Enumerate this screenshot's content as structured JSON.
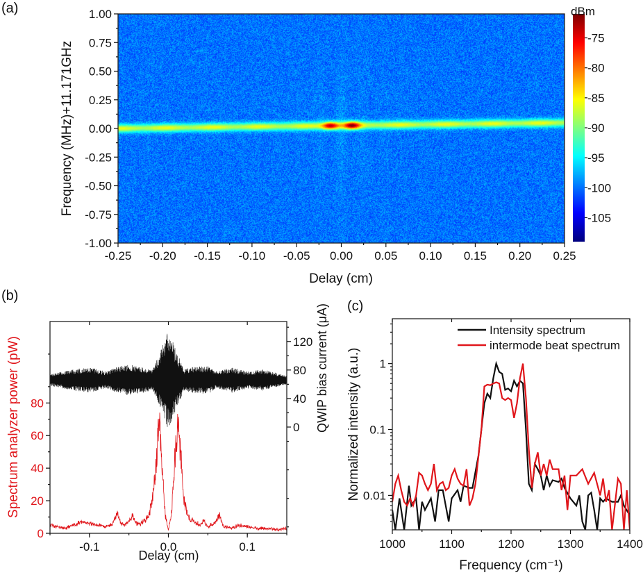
{
  "chart_data": [
    {
      "panel_label": "(a)",
      "type": "heatmap",
      "xlabel": "Delay (cm)",
      "ylabel": "Frequency (MHz)+11.171GHz",
      "xlim": [
        -0.25,
        0.25
      ],
      "ylim": [
        -1.0,
        1.0
      ],
      "xticks": [
        "-0.25",
        "-0.20",
        "-0.15",
        "-0.10",
        "-0.05",
        "0.00",
        "0.05",
        "0.10",
        "0.15",
        "0.20",
        "0.25"
      ],
      "yticks": [
        "1.00",
        "0.75",
        "0.50",
        "0.25",
        "0.00",
        "-0.25",
        "-0.50",
        "-0.75",
        "-1.00"
      ],
      "colorbar": {
        "label": "dBm",
        "colormap": "jet",
        "range": [
          -109,
          -71
        ],
        "ticks": [
          "-75",
          "-80",
          "-85",
          "-90",
          "-95",
          "-100",
          "-105"
        ]
      },
      "background_level_dBm": -100,
      "beat_line": {
        "frequency_at_left_MHz": 0.0,
        "frequency_at_right_MHz": 0.05,
        "level_dBm": -87
      },
      "peaks": [
        {
          "delay": -0.012,
          "level_dBm": -72
        },
        {
          "delay": 0.012,
          "level_dBm": -72
        }
      ],
      "grid": false
    },
    {
      "panel_label": "(b)",
      "type": "line",
      "xlabel": "Delay (cm)",
      "xlim": [
        -0.15,
        0.15
      ],
      "xticks": [
        "-0.1",
        "0.0",
        "0.1"
      ],
      "y_left": {
        "label": "Spectrum analyzer power (pW)",
        "color": "#e0161b",
        "ylim": [
          0,
          130
        ],
        "ticks": [
          "0",
          "20",
          "40",
          "60",
          "80"
        ]
      },
      "y_right": {
        "label": "QWIP bias current (μA)",
        "color": "#111111",
        "ylim": [
          -149,
          148
        ],
        "ticks": [
          "0",
          "40",
          "80",
          "120"
        ]
      },
      "series": [
        {
          "axis": "left",
          "color": "#e0161b",
          "x": [
            -0.15,
            -0.14,
            -0.13,
            -0.12,
            -0.11,
            -0.1,
            -0.09,
            -0.08,
            -0.07,
            -0.065,
            -0.06,
            -0.055,
            -0.045,
            -0.04,
            -0.035,
            -0.03,
            -0.025,
            -0.02,
            -0.015,
            -0.012,
            -0.008,
            -0.004,
            0,
            0.004,
            0.008,
            0.012,
            0.016,
            0.02,
            0.025,
            0.03,
            0.04,
            0.045,
            0.05,
            0.06,
            0.065,
            0.07,
            0.08,
            0.09,
            0.1,
            0.11,
            0.12,
            0.13,
            0.14,
            0.15
          ],
          "y": [
            5,
            4,
            3,
            5,
            7,
            6,
            5,
            4,
            6,
            12,
            6,
            5,
            11,
            6,
            6,
            8,
            10,
            22,
            45,
            72,
            40,
            12,
            2,
            12,
            45,
            66,
            45,
            20,
            10,
            8,
            5,
            8,
            4,
            7,
            11,
            4,
            3,
            5,
            4,
            3,
            3,
            3,
            2,
            3
          ]
        },
        {
          "axis": "right",
          "color": "#111111",
          "kind": "interferogram",
          "center": 66,
          "x": [
            -0.15,
            -0.12,
            -0.1,
            -0.08,
            -0.06,
            -0.05,
            -0.04,
            -0.02,
            -0.01,
            0,
            0.01,
            0.02,
            0.03,
            0.05,
            0.06,
            0.08,
            0.1,
            0.12,
            0.15
          ],
          "half_amplitude": [
            8,
            15,
            18,
            12,
            20,
            22,
            20,
            15,
            40,
            72,
            40,
            15,
            18,
            20,
            12,
            18,
            12,
            15,
            6
          ]
        }
      ],
      "grid": false
    },
    {
      "panel_label": "(c)",
      "type": "line",
      "xlabel": "Frequency (cm⁻¹)",
      "ylabel": "Normalized intensity (a.u.)",
      "xlim": [
        1000,
        1400
      ],
      "ylim": [
        0.003,
        4.8
      ],
      "yscale": "log",
      "xticks": [
        "1000",
        "1100",
        "1200",
        "1300",
        "1400"
      ],
      "yticks": [
        "1",
        "0.1",
        "0.01"
      ],
      "legend": "top-right",
      "series": [
        {
          "name": "Intensity spectrum",
          "color": "#111111",
          "x": [
            1000,
            1005,
            1012,
            1020,
            1028,
            1032,
            1040,
            1045,
            1050,
            1055,
            1065,
            1072,
            1078,
            1085,
            1095,
            1100,
            1110,
            1115,
            1120,
            1130,
            1135,
            1145,
            1155,
            1160,
            1165,
            1170,
            1175,
            1180,
            1185,
            1190,
            1195,
            1200,
            1205,
            1210,
            1215,
            1220,
            1225,
            1230,
            1235,
            1240,
            1245,
            1250,
            1255,
            1260,
            1265,
            1270,
            1280,
            1285,
            1290,
            1300,
            1310,
            1315,
            1320,
            1325,
            1330,
            1335,
            1340,
            1345,
            1350,
            1355,
            1360,
            1370,
            1380,
            1385,
            1390,
            1400
          ],
          "y": [
            0.006,
            0.003,
            0.009,
            0.003,
            0.014,
            0.007,
            0.009,
            0.003,
            0.008,
            0.006,
            0.009,
            0.004,
            0.012,
            0.012,
            0.004,
            0.009,
            0.012,
            0.008,
            0.014,
            0.013,
            0.013,
            0.04,
            0.25,
            0.35,
            0.3,
            0.6,
            1.0,
            0.75,
            0.7,
            0.4,
            0.42,
            0.38,
            0.55,
            0.45,
            0.55,
            0.5,
            0.1,
            0.015,
            0.012,
            0.03,
            0.025,
            0.02,
            0.012,
            0.02,
            0.014,
            0.017,
            0.016,
            0.018,
            0.013,
            0.009,
            0.007,
            0.01,
            0.004,
            0.003,
            0.01,
            0.011,
            0.006,
            0.003,
            0.009,
            0.008,
            0.009,
            0.008,
            0.008,
            0.01,
            0.007,
            0.005
          ]
        },
        {
          "name": "intermode beat spectrum",
          "color": "#e0161b",
          "x": [
            1000,
            1005,
            1010,
            1015,
            1020,
            1025,
            1030,
            1035,
            1040,
            1045,
            1050,
            1055,
            1060,
            1065,
            1070,
            1075,
            1080,
            1085,
            1090,
            1095,
            1100,
            1105,
            1110,
            1115,
            1120,
            1125,
            1130,
            1135,
            1140,
            1150,
            1155,
            1160,
            1165,
            1170,
            1175,
            1180,
            1185,
            1190,
            1195,
            1200,
            1205,
            1210,
            1215,
            1220,
            1225,
            1230,
            1235,
            1240,
            1245,
            1250,
            1255,
            1260,
            1265,
            1270,
            1280,
            1285,
            1290,
            1295,
            1300,
            1310,
            1320,
            1330,
            1340,
            1350,
            1355,
            1360,
            1365,
            1370,
            1380,
            1385,
            1390,
            1395,
            1400
          ],
          "y": [
            0.008,
            0.015,
            0.02,
            0.012,
            0.008,
            0.007,
            0.009,
            0.007,
            0.01,
            0.022,
            0.02,
            0.015,
            0.012,
            0.015,
            0.03,
            0.012,
            0.015,
            0.016,
            0.012,
            0.013,
            0.02,
            0.025,
            0.018,
            0.015,
            0.014,
            0.025,
            0.007,
            0.009,
            0.015,
            0.1,
            0.45,
            0.48,
            0.47,
            0.5,
            0.52,
            0.5,
            0.3,
            0.28,
            0.3,
            0.28,
            0.15,
            0.25,
            0.6,
            1.0,
            0.3,
            0.05,
            0.013,
            0.03,
            0.045,
            0.02,
            0.03,
            0.02,
            0.035,
            0.025,
            0.025,
            0.012,
            0.02,
            0.006,
            0.02,
            0.02,
            0.025,
            0.015,
            0.022,
            0.01,
            0.018,
            0.008,
            0.012,
            0.003,
            0.018,
            0.015,
            0.003,
            0.012,
            0.003
          ]
        }
      ],
      "grid": false
    }
  ]
}
